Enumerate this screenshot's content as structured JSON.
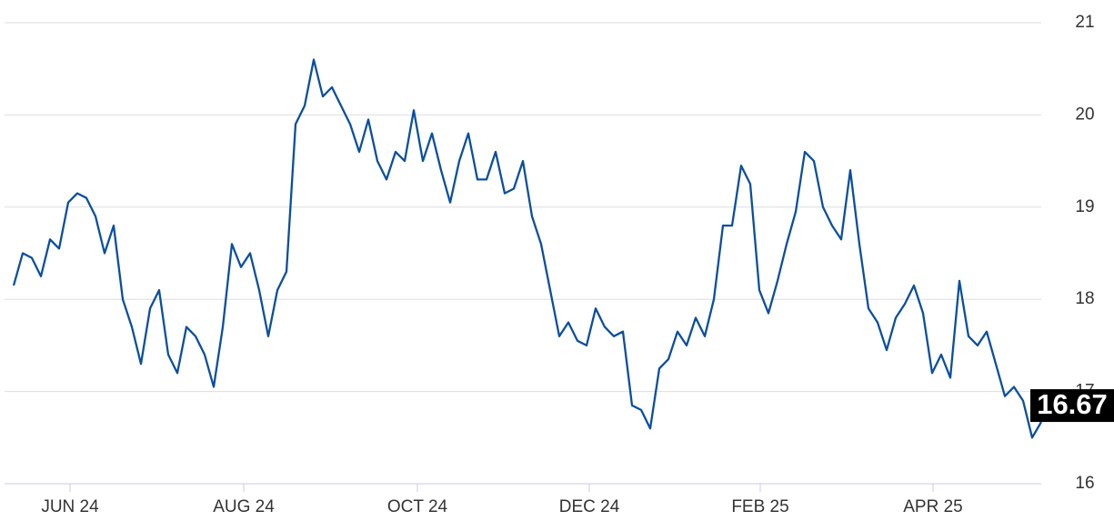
{
  "chart_data": {
    "type": "line",
    "color": "#0b4f9e",
    "values": [
      18.15,
      18.5,
      18.45,
      18.25,
      18.65,
      18.55,
      19.05,
      19.15,
      19.1,
      18.9,
      18.5,
      18.8,
      18.0,
      17.7,
      17.3,
      17.9,
      18.1,
      17.4,
      17.2,
      17.7,
      17.6,
      17.4,
      17.05,
      17.7,
      18.6,
      18.35,
      18.5,
      18.1,
      17.6,
      18.1,
      18.3,
      19.9,
      20.1,
      20.6,
      20.2,
      20.3,
      20.1,
      19.9,
      19.6,
      19.95,
      19.5,
      19.3,
      19.6,
      19.5,
      20.05,
      19.5,
      19.8,
      19.4,
      19.05,
      19.5,
      19.8,
      19.3,
      19.3,
      19.6,
      19.15,
      19.2,
      19.5,
      18.9,
      18.6,
      18.1,
      17.6,
      17.75,
      17.55,
      17.5,
      17.9,
      17.7,
      17.6,
      17.65,
      16.85,
      16.8,
      16.6,
      17.25,
      17.35,
      17.65,
      17.5,
      17.8,
      17.6,
      18.0,
      18.8,
      18.8,
      19.45,
      19.25,
      18.1,
      17.85,
      18.2,
      18.6,
      18.95,
      19.6,
      19.5,
      19.0,
      18.8,
      18.65,
      19.4,
      18.6,
      17.9,
      17.75,
      17.45,
      17.8,
      17.95,
      18.15,
      17.85,
      17.2,
      17.4,
      17.15,
      18.2,
      17.6,
      17.5,
      17.65,
      17.3,
      16.95,
      17.05,
      16.9,
      16.5,
      16.67
    ],
    "xlim": [
      0,
      113
    ],
    "xticks": [
      {
        "value": 6.2,
        "label": "JUN 24"
      },
      {
        "value": 25.3,
        "label": "AUG 24"
      },
      {
        "value": 44.4,
        "label": "OCT 24"
      },
      {
        "value": 63.3,
        "label": "DEC 24"
      },
      {
        "value": 82.1,
        "label": "FEB 25"
      },
      {
        "value": 101.1,
        "label": "APR 25"
      }
    ],
    "ylim": [
      16,
      21
    ],
    "yticks": [
      16,
      17,
      18,
      19,
      20,
      21
    ],
    "grid": true
  }
}
